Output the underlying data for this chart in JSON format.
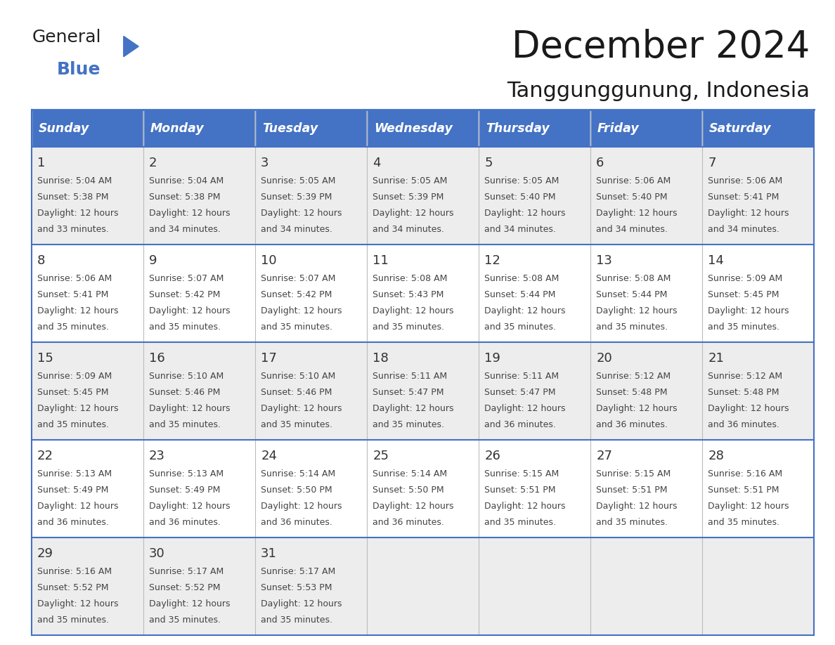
{
  "title": "December 2024",
  "subtitle": "Tanggunggunung, Indonesia",
  "header_bg_color": "#4472C4",
  "header_text_color": "#FFFFFF",
  "weekdays": [
    "Sunday",
    "Monday",
    "Tuesday",
    "Wednesday",
    "Thursday",
    "Friday",
    "Saturday"
  ],
  "row_bg_even": "#EDEDED",
  "row_bg_odd": "#FFFFFF",
  "cell_border_color": "#4472C4",
  "day_text_color": "#333333",
  "info_text_color": "#444444",
  "title_color": "#1a1a1a",
  "calendar_data": [
    [
      {
        "day": "1",
        "sunrise": "5:04 AM",
        "sunset": "5:38 PM",
        "daylight_hours": "12 hours",
        "daylight_mins": "and 33 minutes."
      },
      {
        "day": "2",
        "sunrise": "5:04 AM",
        "sunset": "5:38 PM",
        "daylight_hours": "12 hours",
        "daylight_mins": "and 34 minutes."
      },
      {
        "day": "3",
        "sunrise": "5:05 AM",
        "sunset": "5:39 PM",
        "daylight_hours": "12 hours",
        "daylight_mins": "and 34 minutes."
      },
      {
        "day": "4",
        "sunrise": "5:05 AM",
        "sunset": "5:39 PM",
        "daylight_hours": "12 hours",
        "daylight_mins": "and 34 minutes."
      },
      {
        "day": "5",
        "sunrise": "5:05 AM",
        "sunset": "5:40 PM",
        "daylight_hours": "12 hours",
        "daylight_mins": "and 34 minutes."
      },
      {
        "day": "6",
        "sunrise": "5:06 AM",
        "sunset": "5:40 PM",
        "daylight_hours": "12 hours",
        "daylight_mins": "and 34 minutes."
      },
      {
        "day": "7",
        "sunrise": "5:06 AM",
        "sunset": "5:41 PM",
        "daylight_hours": "12 hours",
        "daylight_mins": "and 34 minutes."
      }
    ],
    [
      {
        "day": "8",
        "sunrise": "5:06 AM",
        "sunset": "5:41 PM",
        "daylight_hours": "12 hours",
        "daylight_mins": "and 35 minutes."
      },
      {
        "day": "9",
        "sunrise": "5:07 AM",
        "sunset": "5:42 PM",
        "daylight_hours": "12 hours",
        "daylight_mins": "and 35 minutes."
      },
      {
        "day": "10",
        "sunrise": "5:07 AM",
        "sunset": "5:42 PM",
        "daylight_hours": "12 hours",
        "daylight_mins": "and 35 minutes."
      },
      {
        "day": "11",
        "sunrise": "5:08 AM",
        "sunset": "5:43 PM",
        "daylight_hours": "12 hours",
        "daylight_mins": "and 35 minutes."
      },
      {
        "day": "12",
        "sunrise": "5:08 AM",
        "sunset": "5:44 PM",
        "daylight_hours": "12 hours",
        "daylight_mins": "and 35 minutes."
      },
      {
        "day": "13",
        "sunrise": "5:08 AM",
        "sunset": "5:44 PM",
        "daylight_hours": "12 hours",
        "daylight_mins": "and 35 minutes."
      },
      {
        "day": "14",
        "sunrise": "5:09 AM",
        "sunset": "5:45 PM",
        "daylight_hours": "12 hours",
        "daylight_mins": "and 35 minutes."
      }
    ],
    [
      {
        "day": "15",
        "sunrise": "5:09 AM",
        "sunset": "5:45 PM",
        "daylight_hours": "12 hours",
        "daylight_mins": "and 35 minutes."
      },
      {
        "day": "16",
        "sunrise": "5:10 AM",
        "sunset": "5:46 PM",
        "daylight_hours": "12 hours",
        "daylight_mins": "and 35 minutes."
      },
      {
        "day": "17",
        "sunrise": "5:10 AM",
        "sunset": "5:46 PM",
        "daylight_hours": "12 hours",
        "daylight_mins": "and 35 minutes."
      },
      {
        "day": "18",
        "sunrise": "5:11 AM",
        "sunset": "5:47 PM",
        "daylight_hours": "12 hours",
        "daylight_mins": "and 35 minutes."
      },
      {
        "day": "19",
        "sunrise": "5:11 AM",
        "sunset": "5:47 PM",
        "daylight_hours": "12 hours",
        "daylight_mins": "and 36 minutes."
      },
      {
        "day": "20",
        "sunrise": "5:12 AM",
        "sunset": "5:48 PM",
        "daylight_hours": "12 hours",
        "daylight_mins": "and 36 minutes."
      },
      {
        "day": "21",
        "sunrise": "5:12 AM",
        "sunset": "5:48 PM",
        "daylight_hours": "12 hours",
        "daylight_mins": "and 36 minutes."
      }
    ],
    [
      {
        "day": "22",
        "sunrise": "5:13 AM",
        "sunset": "5:49 PM",
        "daylight_hours": "12 hours",
        "daylight_mins": "and 36 minutes."
      },
      {
        "day": "23",
        "sunrise": "5:13 AM",
        "sunset": "5:49 PM",
        "daylight_hours": "12 hours",
        "daylight_mins": "and 36 minutes."
      },
      {
        "day": "24",
        "sunrise": "5:14 AM",
        "sunset": "5:50 PM",
        "daylight_hours": "12 hours",
        "daylight_mins": "and 36 minutes."
      },
      {
        "day": "25",
        "sunrise": "5:14 AM",
        "sunset": "5:50 PM",
        "daylight_hours": "12 hours",
        "daylight_mins": "and 36 minutes."
      },
      {
        "day": "26",
        "sunrise": "5:15 AM",
        "sunset": "5:51 PM",
        "daylight_hours": "12 hours",
        "daylight_mins": "and 35 minutes."
      },
      {
        "day": "27",
        "sunrise": "5:15 AM",
        "sunset": "5:51 PM",
        "daylight_hours": "12 hours",
        "daylight_mins": "and 35 minutes."
      },
      {
        "day": "28",
        "sunrise": "5:16 AM",
        "sunset": "5:51 PM",
        "daylight_hours": "12 hours",
        "daylight_mins": "and 35 minutes."
      }
    ],
    [
      {
        "day": "29",
        "sunrise": "5:16 AM",
        "sunset": "5:52 PM",
        "daylight_hours": "12 hours",
        "daylight_mins": "and 35 minutes."
      },
      {
        "day": "30",
        "sunrise": "5:17 AM",
        "sunset": "5:52 PM",
        "daylight_hours": "12 hours",
        "daylight_mins": "and 35 minutes."
      },
      {
        "day": "31",
        "sunrise": "5:17 AM",
        "sunset": "5:53 PM",
        "daylight_hours": "12 hours",
        "daylight_mins": "and 35 minutes."
      },
      null,
      null,
      null,
      null
    ]
  ],
  "figsize": [
    11.88,
    9.18
  ],
  "dpi": 100
}
